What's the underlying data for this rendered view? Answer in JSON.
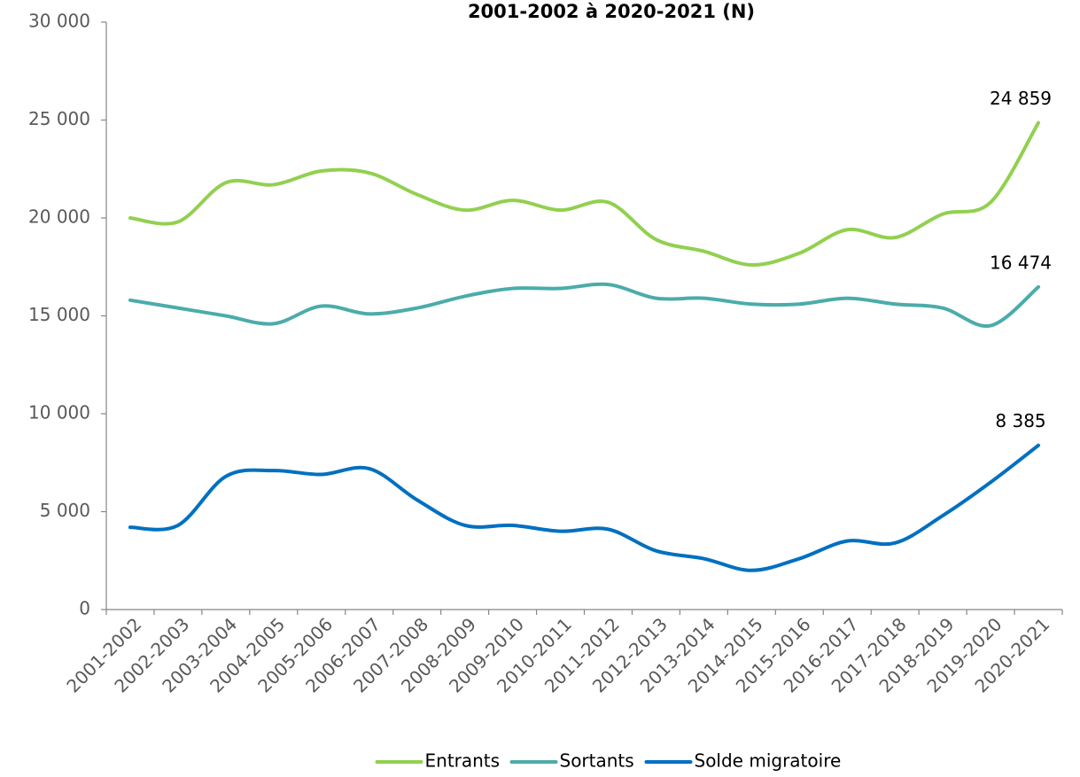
{
  "chart_data": {
    "type": "line",
    "title": "2001-2002 à 2020-2021 (N)",
    "categories": [
      "2001-2002",
      "2002-2003",
      "2003-2004",
      "2004-2005",
      "2005-2006",
      "2006-2007",
      "2007-2008",
      "2008-2009",
      "2009-2010",
      "2010-2011",
      "2011-2012",
      "2012-2013",
      "2013-2014",
      "2014-2015",
      "2015-2016",
      "2016-2017",
      "2017-2018",
      "2018-2019",
      "2019-2020",
      "2020-2021"
    ],
    "series": [
      {
        "name": "Entrants",
        "color": "#92d050",
        "values": [
          20000,
          19800,
          21800,
          21700,
          22400,
          22300,
          21200,
          20400,
          20900,
          20400,
          20800,
          18900,
          18300,
          17600,
          18200,
          19400,
          19000,
          20200,
          20800,
          24859
        ],
        "value_labels": [
          null,
          null,
          null,
          null,
          null,
          null,
          null,
          null,
          null,
          null,
          null,
          null,
          null,
          null,
          null,
          null,
          null,
          null,
          null,
          "24 859"
        ]
      },
      {
        "name": "Sortants",
        "color": "#4bacaa",
        "values": [
          15800,
          15400,
          15000,
          14600,
          15500,
          15100,
          15400,
          16000,
          16400,
          16400,
          16600,
          15900,
          15900,
          15600,
          15600,
          15900,
          15600,
          15400,
          14500,
          16474
        ],
        "value_labels": [
          null,
          null,
          null,
          null,
          null,
          null,
          null,
          null,
          null,
          null,
          null,
          null,
          null,
          null,
          null,
          null,
          null,
          null,
          null,
          "16 474"
        ]
      },
      {
        "name": "Solde migratoire",
        "color": "#0070c0",
        "values": [
          4200,
          4300,
          6800,
          7100,
          6900,
          7200,
          5600,
          4300,
          4300,
          4000,
          4100,
          3000,
          2600,
          2000,
          2600,
          3500,
          3400,
          4800,
          6500,
          8385
        ],
        "value_labels": [
          null,
          null,
          null,
          null,
          null,
          null,
          null,
          null,
          null,
          null,
          null,
          null,
          null,
          null,
          null,
          null,
          null,
          null,
          null,
          "8 385"
        ]
      }
    ],
    "ylim": [
      0,
      30000
    ],
    "yticks": [
      0,
      {
        "value": 5000,
        "label": "5 000"
      },
      {
        "value": 10000,
        "label": "10 000"
      },
      {
        "value": 15000,
        "label": "15 000"
      },
      {
        "value": 20000,
        "label": "20 000"
      },
      {
        "value": 25000,
        "label": "25 000"
      },
      {
        "value": 30000,
        "label": "30 000"
      }
    ],
    "grid": false,
    "smooth": true,
    "legend": "bottom"
  }
}
